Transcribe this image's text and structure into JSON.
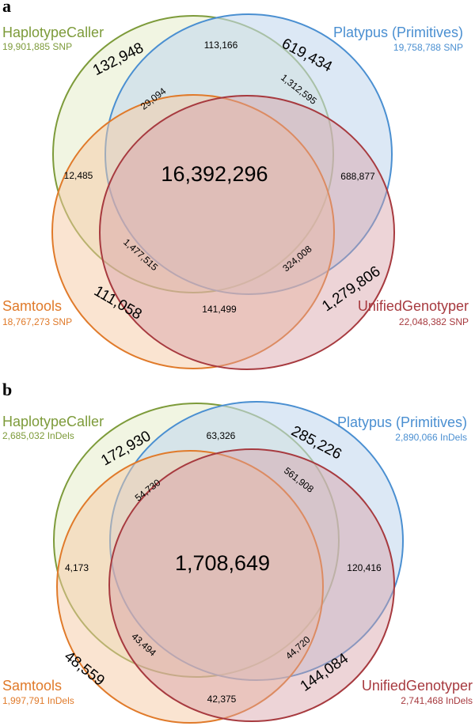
{
  "colors": {
    "haplotypecaller": "#7d9b3a",
    "platypus": "#4a8fd1",
    "samtools": "#e07a2a",
    "unifiedgenotyper": "#a73a3f",
    "haplotypecaller_fill": "#e6edcb",
    "platypus_fill": "#c4d8ee",
    "samtools_fill": "#f6c9a3",
    "unifiedgenotyper_fill": "#d7a0a6"
  },
  "panels": [
    {
      "label": "a",
      "sets": {
        "haplotypecaller": {
          "name": "HaplotypeCaller",
          "count": "19,901,885 SNP"
        },
        "platypus": {
          "name": "Platypus (Primitives)",
          "count": "19,758,788 SNP"
        },
        "samtools": {
          "name": "Samtools",
          "count": "18,767,273 SNP"
        },
        "unifiedgenotyper": {
          "name": "UnifiedGenotyper",
          "count": "22,048,382 SNP"
        }
      },
      "regions": {
        "hc_only": "132,948",
        "pl_only": "619,434",
        "st_only": "111,058",
        "ug_only": "1,279,806",
        "hc_pl": "113,166",
        "hc_st": "12,485",
        "pl_ug": "688,877",
        "st_ug": "141,499",
        "hc_pl_st": "29,094",
        "hc_pl_ug": "1,312,595",
        "hc_st_ug": "1,477,515",
        "pl_st_ug": "324,008",
        "all": "16,392,296"
      }
    },
    {
      "label": "b",
      "sets": {
        "haplotypecaller": {
          "name": "HaplotypeCaller",
          "count": "2,685,032 InDels"
        },
        "platypus": {
          "name": "Platypus (Primitives)",
          "count": "2,890,066 InDels"
        },
        "samtools": {
          "name": "Samtools",
          "count": "1,997,791 InDels"
        },
        "unifiedgenotyper": {
          "name": "UnifiedGenotyper",
          "count": "2,741,468 InDels"
        }
      },
      "regions": {
        "hc_only": "172,930",
        "pl_only": "285,226",
        "st_only": "48,559",
        "ug_only": "144,084",
        "hc_pl": "63,326",
        "hc_st": "4,173",
        "pl_ug": "120,416",
        "st_ug": "42,375",
        "hc_pl_st": "54,730",
        "hc_pl_ug": "561,908",
        "hc_st_ug": "43,494",
        "pl_st_ug": "44,720",
        "all": "1,708,649"
      }
    }
  ]
}
